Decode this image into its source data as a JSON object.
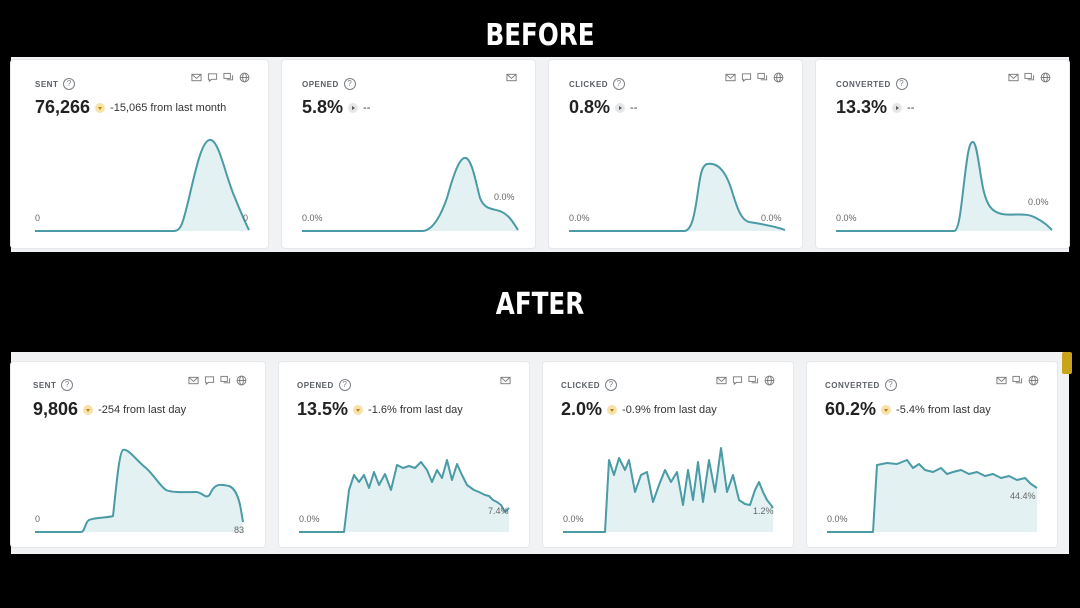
{
  "headings": {
    "before": "BEFORE",
    "after": "AFTER"
  },
  "before": [
    {
      "label": "SENT",
      "value": "76,266",
      "trend": "down",
      "change": "-15,065 from last month",
      "icons": [
        "mail-icon",
        "sms-icon",
        "chat-icon",
        "globe-icon"
      ],
      "start_tick": "0",
      "end_tick": "0"
    },
    {
      "label": "OPENED",
      "value": "5.8%",
      "trend": "flat",
      "change": "--",
      "icons": [
        "mail-icon"
      ],
      "start_tick": "0.0%",
      "end_tick": "0.0%"
    },
    {
      "label": "CLICKED",
      "value": "0.8%",
      "trend": "flat",
      "change": "--",
      "icons": [
        "mail-icon",
        "sms-icon",
        "chat-icon",
        "globe-icon"
      ],
      "start_tick": "0.0%",
      "end_tick": "0.0%"
    },
    {
      "label": "CONVERTED",
      "value": "13.3%",
      "trend": "flat",
      "change": "--",
      "icons": [
        "mail-icon",
        "chat-icon",
        "globe-icon"
      ],
      "start_tick": "0.0%",
      "end_tick": "0.0%"
    }
  ],
  "after": [
    {
      "label": "SENT",
      "value": "9,806",
      "trend": "down",
      "change": "-254 from last day",
      "icons": [
        "mail-icon",
        "sms-icon",
        "chat-icon",
        "globe-icon"
      ],
      "start_tick": "0",
      "end_tick": "83"
    },
    {
      "label": "OPENED",
      "value": "13.5%",
      "trend": "down",
      "change": "-1.6% from last day",
      "icons": [
        "mail-icon"
      ],
      "start_tick": "0.0%",
      "end_tick": "7.4%"
    },
    {
      "label": "CLICKED",
      "value": "2.0%",
      "trend": "down",
      "change": "-0.9% from last day",
      "icons": [
        "mail-icon",
        "sms-icon",
        "chat-icon",
        "globe-icon"
      ],
      "start_tick": "0.0%",
      "end_tick": "1.2%"
    },
    {
      "label": "CONVERTED",
      "value": "60.2%",
      "trend": "down",
      "change": "-5.4% from last day",
      "icons": [
        "mail-icon",
        "chat-icon",
        "globe-icon"
      ],
      "start_tick": "0.0%",
      "end_tick": "44.4%"
    }
  ],
  "colors": {
    "line": "#4a9ba5",
    "fill": "#e4f1f3",
    "trend_down": "#b88409"
  }
}
